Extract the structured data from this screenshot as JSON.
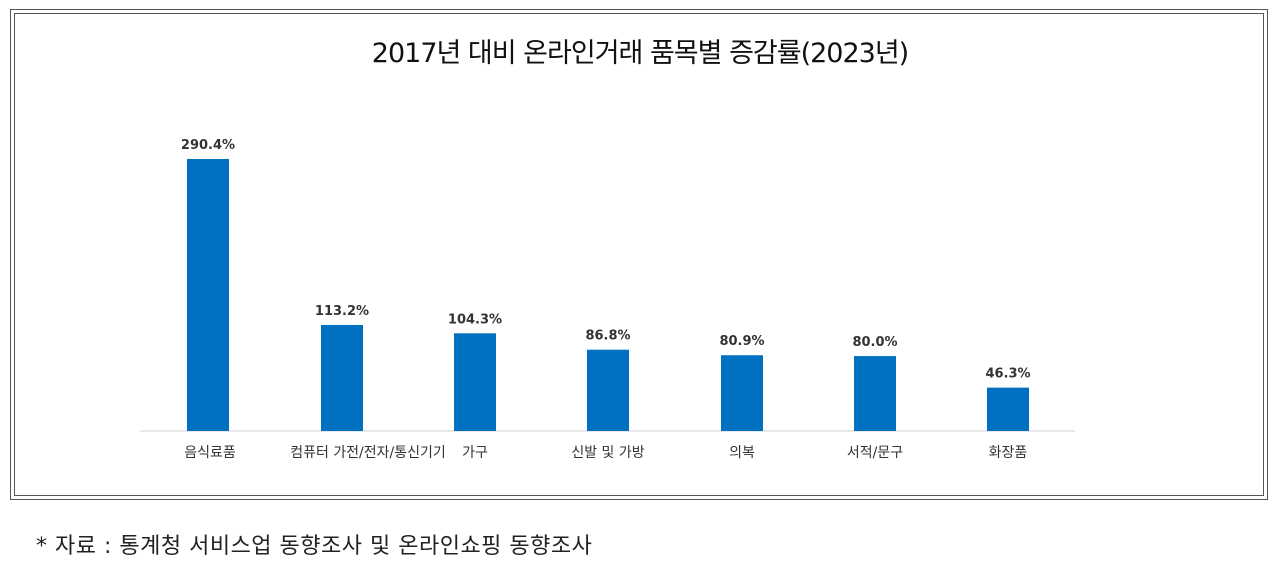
{
  "chart_data": {
    "type": "bar",
    "title": "2017년 대비 온라인거래 품목별 증감률(2023년)",
    "categories": [
      "음식료품",
      "컴퓨터 가전/전자/통신기기",
      "가구",
      "신발 및 가방",
      "의복",
      "서적/문구",
      "화장품"
    ],
    "values": [
      290.4,
      113.2,
      104.3,
      86.8,
      80.9,
      80.0,
      46.3
    ],
    "value_labels": [
      "290.4%",
      "113.2%",
      "104.3%",
      "86.8%",
      "80.9%",
      "80.0%",
      "46.3%"
    ],
    "xlabel": "",
    "ylabel": "",
    "ylim": [
      0,
      290.4
    ],
    "grid": false,
    "legend": "none",
    "bar_color": "#0070C0"
  },
  "source_note": "* 자료 : 통계청 서비스업 동향조사 및 온라인쇼핑 동향조사"
}
